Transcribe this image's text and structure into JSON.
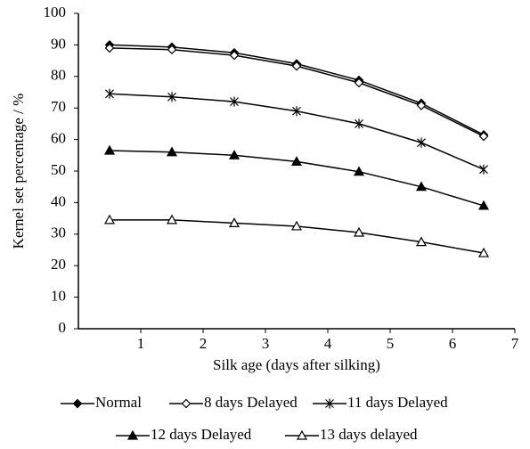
{
  "chart_data": {
    "type": "line",
    "x": [
      0.5,
      1.5,
      2.5,
      3.5,
      4.5,
      5.5,
      6.5
    ],
    "series": [
      {
        "name": "Normal",
        "color": "#000000",
        "marker": "diamond-filled",
        "values": [
          90,
          89.3,
          87.5,
          84,
          78.8,
          71.5,
          61.5
        ]
      },
      {
        "name": "8 days Delayed",
        "color": "#000000",
        "marker": "diamond-open",
        "values": [
          89,
          88.5,
          86.7,
          83.3,
          78,
          70.8,
          61
        ]
      },
      {
        "name": "11 days Delayed",
        "color": "#000000",
        "marker": "asterisk",
        "values": [
          74.5,
          73.5,
          72,
          69,
          65,
          59,
          50.5
        ]
      },
      {
        "name": "12 days Delayed",
        "color": "#000000",
        "marker": "triangle-filled",
        "values": [
          56.5,
          56,
          55,
          53,
          49.8,
          45,
          39
        ]
      },
      {
        "name": "13 days delayed",
        "color": "#000000",
        "marker": "triangle-open",
        "values": [
          34.5,
          34.5,
          33.5,
          32.5,
          30.5,
          27.5,
          24
        ]
      }
    ],
    "x_label": "Silk age (days after silking)",
    "y_label": "Kernel set percentage / %",
    "xlim": [
      0,
      7
    ],
    "xticks": [
      1,
      2,
      3,
      4,
      5,
      6,
      7
    ],
    "ylim": [
      0,
      100
    ],
    "yticks": [
      0,
      10,
      20,
      30,
      40,
      50,
      60,
      70,
      80,
      90,
      100
    ],
    "grid": false,
    "legend": "bottom"
  }
}
